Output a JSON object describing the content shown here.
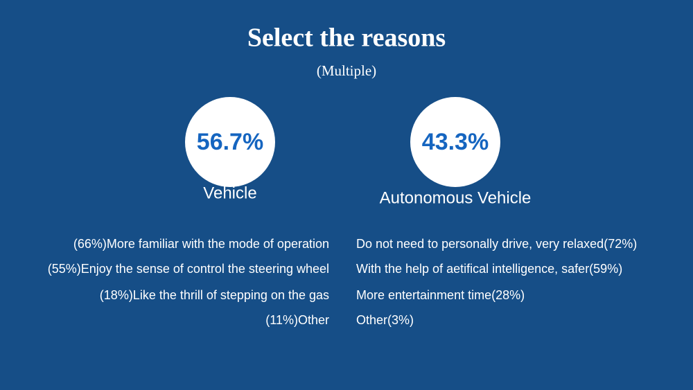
{
  "title": "Select the reasons",
  "subtitle": "(Multiple)",
  "left": {
    "percent": "56.7%",
    "label": "Vehicle",
    "reasons": [
      "(66%)More familiar with the mode of operation",
      "(55%)Enjoy the sense of control the steering wheel",
      "(18%)Like the thrill of stepping on the gas",
      "(11%)Other"
    ]
  },
  "right": {
    "percent": "43.3%",
    "label": "Autonomous Vehicle",
    "reasons": [
      "Do not need to personally drive, very relaxed(72%)",
      "With the help of aetifical intelligence, safer(59%)",
      "More entertainment time(28%)",
      "Other(3%)"
    ]
  }
}
